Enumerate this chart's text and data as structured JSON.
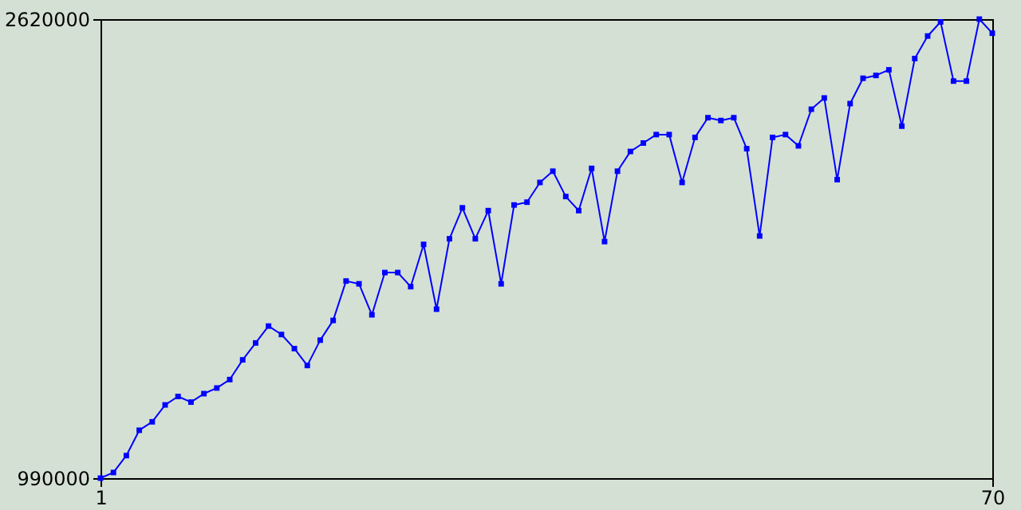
{
  "chart_data": {
    "type": "line",
    "x": [
      1,
      2,
      3,
      4,
      5,
      6,
      7,
      8,
      9,
      10,
      11,
      12,
      13,
      14,
      15,
      16,
      17,
      18,
      19,
      20,
      21,
      22,
      23,
      24,
      25,
      26,
      27,
      28,
      29,
      30,
      31,
      32,
      33,
      34,
      35,
      36,
      37,
      38,
      39,
      40,
      41,
      42,
      43,
      44,
      45,
      46,
      47,
      48,
      49,
      50,
      51,
      52,
      53,
      54,
      55,
      56,
      57,
      58,
      59,
      60,
      61,
      62,
      63,
      64,
      65,
      66,
      67,
      68,
      69,
      70
    ],
    "series": [
      {
        "color": "#0000ff",
        "values": [
          990000,
          1010000,
          1070000,
          1160000,
          1190000,
          1250000,
          1280000,
          1260000,
          1290000,
          1310000,
          1340000,
          1410000,
          1470000,
          1530000,
          1500000,
          1450000,
          1390000,
          1480000,
          1550000,
          1690000,
          1680000,
          1570000,
          1720000,
          1720000,
          1670000,
          1820000,
          1590000,
          1840000,
          1950000,
          1840000,
          1940000,
          1680000,
          1960000,
          1970000,
          2040000,
          2080000,
          1990000,
          1940000,
          2090000,
          1830000,
          2080000,
          2150000,
          2180000,
          2210000,
          2210000,
          2040000,
          2200000,
          2270000,
          2260000,
          2270000,
          2160000,
          1850000,
          2200000,
          2210000,
          2170000,
          2300000,
          2340000,
          2050000,
          2320000,
          2410000,
          2420000,
          2440000,
          2240000,
          2480000,
          2560000,
          2610000,
          2400000,
          2400000,
          2620000,
          2570000
        ]
      }
    ],
    "xlim": [
      1,
      70
    ],
    "xticks": [
      1,
      70
    ],
    "ylim": [
      990000,
      2620000
    ],
    "yticks": [
      990000,
      2620000
    ],
    "grid": false,
    "marker": "square",
    "line_style": "solid"
  }
}
